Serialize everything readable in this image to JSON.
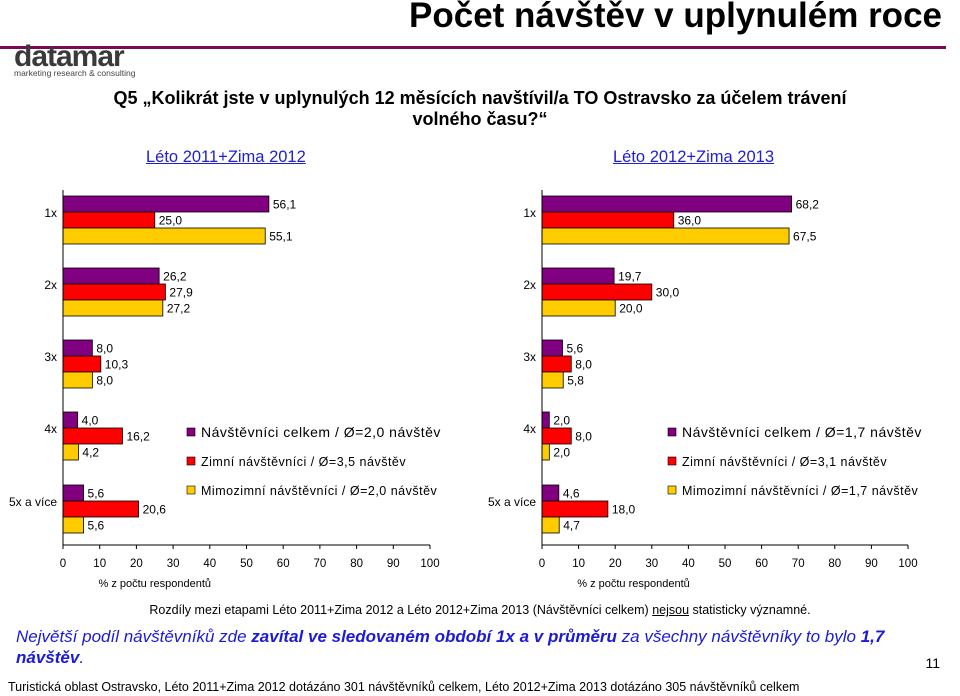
{
  "page": {
    "title": "Počet návštěv v uplynulém roce",
    "logo_text": "datamar",
    "logo_tagline": "marketing research & consulting",
    "question_line1": "Q5 „Kolikrát jste v uplynulých 12 měsících navštívil/a TO Ostravsko za účelem trávení",
    "question_line2": "volného času?“",
    "note_before": "Rozdíly mezi etapami Léto 2011+Zima 2012 a Léto 2012+Zima 2013 (Návštěvníci celkem) ",
    "note_underlined": "nejsou",
    "note_after": " statisticky významné.",
    "conclusion_a": "Největší podíl návštěvníků zde ",
    "conclusion_b": "zavítal ve sledovaném období 1x a v průměru",
    "conclusion_c": " za všechny návštěvníky to bylo ",
    "conclusion_d": "1,7 návštěv",
    "conclusion_e": ".",
    "page_number": "11",
    "footer": "Turistická oblast Ostravsko, Léto 2011+Zima 2012 dotázáno 301 návštěvníků celkem,  Léto 2012+Zima 2013 dotázáno 305 návštěvníků celkem"
  },
  "colors": {
    "total": "#800080",
    "winter": "#ff0000",
    "summer": "#ffcc00"
  },
  "chart_data": [
    {
      "type": "bar",
      "orientation": "horizontal",
      "title": "Léto 2011+Zima 2012",
      "xlabel": "% z počtu respondentů",
      "xlim": [
        0,
        100
      ],
      "xticks": [
        "0",
        "10",
        "20",
        "30",
        "40",
        "50",
        "60",
        "70",
        "80",
        "90",
        "100"
      ],
      "categories": [
        "1x",
        "2x",
        "3x",
        "4x",
        "5x a více"
      ],
      "series": [
        {
          "name": "Návštěvníci celkem / Ø=2,0 návštěv",
          "values": [
            56.1,
            26.2,
            8.0,
            4.0,
            5.6
          ],
          "labels": [
            "56,1",
            "26,2",
            "8,0",
            "4,0",
            "5,6"
          ]
        },
        {
          "name": "Zimní návštěvníci / Ø=3,5 návštěv",
          "values": [
            25.0,
            27.9,
            10.3,
            16.2,
            20.6
          ],
          "labels": [
            "25,0",
            "27,9",
            "10,3",
            "16,2",
            "20,6"
          ]
        },
        {
          "name": "Mimozimní návštěvníci / Ø=2,0 návštěv",
          "values": [
            55.1,
            27.2,
            8.0,
            4.2,
            5.6
          ],
          "labels": [
            "55,1",
            "27,2",
            "8,0",
            "4,2",
            "5,6"
          ]
        }
      ]
    },
    {
      "type": "bar",
      "orientation": "horizontal",
      "title": "Léto 2012+Zima 2013",
      "xlabel": "% z počtu respondentů",
      "xlim": [
        0,
        100
      ],
      "xticks": [
        "0",
        "10",
        "20",
        "30",
        "40",
        "50",
        "60",
        "70",
        "80",
        "90",
        "100"
      ],
      "categories": [
        "1x",
        "2x",
        "3x",
        "4x",
        "5x a více"
      ],
      "series": [
        {
          "name": "Návštěvníci celkem / Ø=1,7 návštěv",
          "values": [
            68.2,
            19.7,
            5.6,
            2.0,
            4.6
          ],
          "labels": [
            "68,2",
            "19,7",
            "5,6",
            "2,0",
            "4,6"
          ]
        },
        {
          "name": "Zimní návštěvníci / Ø=3,1 návštěv",
          "values": [
            36.0,
            30.0,
            8.0,
            8.0,
            18.0
          ],
          "labels": [
            "36,0",
            "30,0",
            "8,0",
            "8,0",
            "18,0"
          ]
        },
        {
          "name": "Mimozimní návštěvníci / Ø=1,7 návštěv",
          "values": [
            67.5,
            20.0,
            5.8,
            2.0,
            4.7
          ],
          "labels": [
            "67,5",
            "20,0",
            "5,8",
            "2,0",
            "4,7"
          ]
        }
      ]
    }
  ]
}
